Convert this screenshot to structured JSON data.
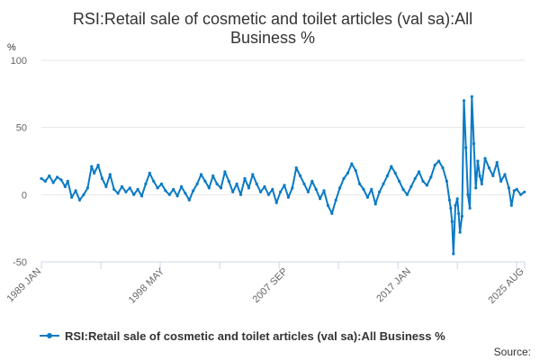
{
  "chart_data": {
    "type": "line",
    "title_lines": [
      "RSI:Retail sale of cosmetic and toilet articles (val sa):All",
      "Business %"
    ],
    "ylabel": "%",
    "ylim": [
      -50,
      100
    ],
    "yticks": [
      -50,
      0,
      50,
      100
    ],
    "xlim": [
      1989.0,
      2025.6
    ],
    "xtick_labels": [
      {
        "label": "1989 JAN",
        "x": 1989.0
      },
      {
        "label": "1998 MAY",
        "x": 1998.33
      },
      {
        "label": "2007 SEP",
        "x": 2007.67
      },
      {
        "label": "2017 JAN",
        "x": 2017.0
      },
      {
        "label": "2025 AUG",
        "x": 2025.58
      }
    ],
    "series": [
      {
        "name": "RSI:Retail sale of cosmetic and toilet articles (val sa):All Business %",
        "color": "#0a7ac4",
        "points": [
          [
            1989.0,
            12
          ],
          [
            1989.3,
            10
          ],
          [
            1989.6,
            14
          ],
          [
            1989.9,
            9
          ],
          [
            1990.2,
            13
          ],
          [
            1990.5,
            11
          ],
          [
            1990.8,
            6
          ],
          [
            1991.0,
            10
          ],
          [
            1991.3,
            -2
          ],
          [
            1991.6,
            3
          ],
          [
            1991.9,
            -4
          ],
          [
            1992.2,
            0
          ],
          [
            1992.5,
            5
          ],
          [
            1992.8,
            21
          ],
          [
            1993.0,
            16
          ],
          [
            1993.3,
            22
          ],
          [
            1993.6,
            12
          ],
          [
            1993.9,
            6
          ],
          [
            1994.2,
            15
          ],
          [
            1994.5,
            4
          ],
          [
            1994.8,
            1
          ],
          [
            1995.1,
            6
          ],
          [
            1995.4,
            2
          ],
          [
            1995.7,
            5
          ],
          [
            1996.0,
            0
          ],
          [
            1996.3,
            4
          ],
          [
            1996.6,
            -1
          ],
          [
            1996.9,
            8
          ],
          [
            1997.2,
            16
          ],
          [
            1997.5,
            10
          ],
          [
            1997.8,
            5
          ],
          [
            1998.1,
            8
          ],
          [
            1998.4,
            3
          ],
          [
            1998.7,
            0
          ],
          [
            1999.0,
            4
          ],
          [
            1999.3,
            -1
          ],
          [
            1999.6,
            6
          ],
          [
            1999.9,
            1
          ],
          [
            2000.2,
            -4
          ],
          [
            2000.5,
            3
          ],
          [
            2000.8,
            8
          ],
          [
            2001.1,
            15
          ],
          [
            2001.4,
            10
          ],
          [
            2001.7,
            5
          ],
          [
            2002.0,
            14
          ],
          [
            2002.3,
            8
          ],
          [
            2002.6,
            5
          ],
          [
            2002.9,
            17
          ],
          [
            2003.2,
            10
          ],
          [
            2003.5,
            2
          ],
          [
            2003.8,
            8
          ],
          [
            2004.1,
            0
          ],
          [
            2004.4,
            12
          ],
          [
            2004.7,
            5
          ],
          [
            2005.0,
            15
          ],
          [
            2005.3,
            8
          ],
          [
            2005.6,
            2
          ],
          [
            2005.9,
            6
          ],
          [
            2006.2,
            0
          ],
          [
            2006.5,
            4
          ],
          [
            2006.8,
            -6
          ],
          [
            2007.1,
            2
          ],
          [
            2007.4,
            7
          ],
          [
            2007.7,
            -2
          ],
          [
            2008.0,
            5
          ],
          [
            2008.3,
            20
          ],
          [
            2008.6,
            14
          ],
          [
            2008.9,
            8
          ],
          [
            2009.2,
            2
          ],
          [
            2009.5,
            10
          ],
          [
            2009.8,
            4
          ],
          [
            2010.1,
            -3
          ],
          [
            2010.4,
            3
          ],
          [
            2010.7,
            -8
          ],
          [
            2011.0,
            -14
          ],
          [
            2011.3,
            -4
          ],
          [
            2011.6,
            5
          ],
          [
            2011.9,
            12
          ],
          [
            2012.2,
            16
          ],
          [
            2012.5,
            23
          ],
          [
            2012.8,
            18
          ],
          [
            2013.1,
            8
          ],
          [
            2013.4,
            4
          ],
          [
            2013.7,
            -2
          ],
          [
            2014.0,
            4
          ],
          [
            2014.3,
            -7
          ],
          [
            2014.6,
            2
          ],
          [
            2014.9,
            8
          ],
          [
            2015.2,
            14
          ],
          [
            2015.5,
            21
          ],
          [
            2015.8,
            16
          ],
          [
            2016.1,
            10
          ],
          [
            2016.4,
            4
          ],
          [
            2016.7,
            0
          ],
          [
            2017.0,
            6
          ],
          [
            2017.3,
            12
          ],
          [
            2017.6,
            17
          ],
          [
            2017.9,
            10
          ],
          [
            2018.2,
            7
          ],
          [
            2018.5,
            13
          ],
          [
            2018.8,
            22
          ],
          [
            2019.1,
            25
          ],
          [
            2019.4,
            20
          ],
          [
            2019.7,
            10
          ],
          [
            2019.9,
            -4
          ],
          [
            2020.0,
            -10
          ],
          [
            2020.1,
            -20
          ],
          [
            2020.2,
            -44
          ],
          [
            2020.35,
            -8
          ],
          [
            2020.5,
            -3
          ],
          [
            2020.6,
            -14
          ],
          [
            2020.7,
            -28
          ],
          [
            2020.85,
            -16
          ],
          [
            2021.0,
            70
          ],
          [
            2021.15,
            35
          ],
          [
            2021.3,
            0
          ],
          [
            2021.45,
            -10
          ],
          [
            2021.6,
            73
          ],
          [
            2021.75,
            38
          ],
          [
            2021.9,
            5
          ],
          [
            2022.05,
            25
          ],
          [
            2022.2,
            14
          ],
          [
            2022.35,
            8
          ],
          [
            2022.6,
            27
          ],
          [
            2022.9,
            20
          ],
          [
            2023.2,
            14
          ],
          [
            2023.5,
            24
          ],
          [
            2023.8,
            10
          ],
          [
            2024.1,
            15
          ],
          [
            2024.4,
            5
          ],
          [
            2024.6,
            -8
          ],
          [
            2024.8,
            3
          ],
          [
            2025.0,
            4
          ],
          [
            2025.3,
            0
          ],
          [
            2025.58,
            2
          ]
        ]
      }
    ],
    "legend": {
      "position": "bottom"
    },
    "source_label": "Source:"
  }
}
